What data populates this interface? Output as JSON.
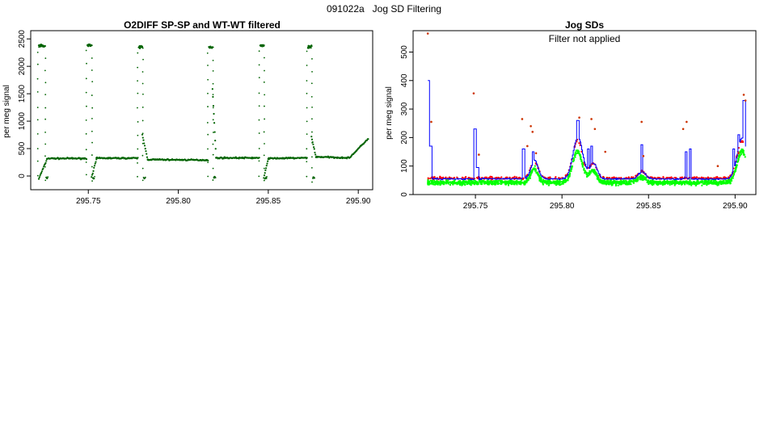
{
  "page": {
    "title": "091022a   Jog SD Filtering"
  },
  "chart_data": [
    {
      "type": "scatter",
      "title": "O2DIFF SP-SP and WT-WT filtered",
      "ylabel": "per meg signal",
      "xlabel": "",
      "xlim": [
        295.718,
        295.908
      ],
      "ylim": [
        -250,
        2650
      ],
      "xticks": [
        "295.75",
        "295.80",
        "295.85",
        "295.90"
      ],
      "yticks": [
        "0",
        "500",
        "1000",
        "1500",
        "2000",
        "2500"
      ],
      "colors": {
        "points": "#006400"
      },
      "series": [
        {
          "style": "points",
          "color": "#006400",
          "pulses": [
            {
              "start": 295.7225,
              "end": 295.7258,
              "level": 2370
            },
            {
              "start": 295.7495,
              "end": 295.7518,
              "level": 2380
            },
            {
              "start": 295.778,
              "end": 295.78,
              "level": 2350
            },
            {
              "start": 295.817,
              "end": 295.819,
              "level": 2350
            },
            {
              "start": 295.8455,
              "end": 295.8475,
              "level": 2380
            },
            {
              "start": 295.872,
              "end": 295.874,
              "level": 2350
            }
          ],
          "segments": [
            {
              "x": [
                295.7225,
                295.727
              ],
              "y": [
                -50,
                300
              ]
            },
            {
              "x": [
                295.727,
                295.749
              ],
              "y": [
                320,
                320
              ]
            },
            {
              "x": [
                295.7518,
                295.7545
              ],
              "y": [
                -20,
                300
              ]
            },
            {
              "x": [
                295.7545,
                295.7775
              ],
              "y": [
                325,
                325
              ]
            },
            {
              "x": [
                295.78,
                295.783
              ],
              "y": [
                750,
                300
              ]
            },
            {
              "x": [
                295.783,
                295.8165
              ],
              "y": [
                300,
                290
              ]
            },
            {
              "x": [
                295.819,
                295.821
              ],
              "y": [
                1600,
                330
              ]
            },
            {
              "x": [
                295.821,
                295.845
              ],
              "y": [
                330,
                330
              ]
            },
            {
              "x": [
                295.8475,
                295.85
              ],
              "y": [
                -40,
                320
              ]
            },
            {
              "x": [
                295.85,
                295.8715
              ],
              "y": [
                320,
                330
              ]
            },
            {
              "x": [
                295.874,
                295.8765
              ],
              "y": [
                720,
                340
              ]
            },
            {
              "x": [
                295.8765,
                295.895
              ],
              "y": [
                350,
                330
              ]
            },
            {
              "x": [
                295.895,
                295.9055
              ],
              "y": [
                330,
                680
              ]
            }
          ]
        }
      ]
    },
    {
      "type": "scatter",
      "title": "Jog SDs",
      "annotation": "Filter not applied",
      "ylabel": "per meg signal",
      "xlabel": "",
      "xlim": [
        295.714,
        295.912
      ],
      "ylim": [
        0,
        575
      ],
      "xticks": [
        "295.75",
        "295.80",
        "295.85",
        "295.90"
      ],
      "yticks": [
        "0",
        "100",
        "200",
        "300",
        "400",
        "500"
      ],
      "colors": {
        "red": "#ff0000",
        "green": "#00ff00",
        "blue": "#0000ff",
        "brown": "#cc3300"
      },
      "series": [
        {
          "style": "points",
          "color": "#ff0000",
          "baseline": 58
        },
        {
          "style": "points",
          "color": "#00ff00",
          "baseline": 42
        },
        {
          "style": "step",
          "color": "#0000ff",
          "baseline": 55,
          "spikes": [
            {
              "x": 295.7225,
              "y": 400
            },
            {
              "x": 295.724,
              "y": 170
            },
            {
              "x": 295.7495,
              "y": 230
            },
            {
              "x": 295.751,
              "y": 95
            },
            {
              "x": 295.7775,
              "y": 160
            },
            {
              "x": 295.783,
              "y": 150
            },
            {
              "x": 295.809,
              "y": 260
            },
            {
              "x": 295.815,
              "y": 160
            },
            {
              "x": 295.817,
              "y": 170
            },
            {
              "x": 295.846,
              "y": 175
            },
            {
              "x": 295.8715,
              "y": 150
            },
            {
              "x": 295.874,
              "y": 160
            },
            {
              "x": 295.899,
              "y": 160
            },
            {
              "x": 295.902,
              "y": 210
            },
            {
              "x": 295.905,
              "y": 330
            }
          ],
          "bumps": [
            {
              "x": 295.784,
              "y": 120,
              "width": 0.003
            },
            {
              "x": 295.809,
              "y": 200,
              "width": 0.004
            },
            {
              "x": 295.818,
              "y": 110,
              "width": 0.003
            },
            {
              "x": 295.846,
              "y": 80,
              "width": 0.003
            },
            {
              "x": 295.904,
              "y": 200,
              "width": 0.004
            }
          ]
        },
        {
          "style": "points",
          "color": "#cc3300",
          "x": [
            295.7225,
            295.7245,
            295.749,
            295.752,
            295.777,
            295.78,
            295.782,
            295.783,
            295.785,
            295.81,
            295.817,
            295.819,
            295.825,
            295.846,
            295.847,
            295.87,
            295.872,
            295.89,
            295.902,
            295.905,
            295.906
          ],
          "y": [
            565,
            255,
            355,
            140,
            265,
            170,
            240,
            220,
            145,
            270,
            265,
            230,
            150,
            255,
            135,
            230,
            255,
            100,
            145,
            350,
            330
          ]
        }
      ]
    }
  ]
}
